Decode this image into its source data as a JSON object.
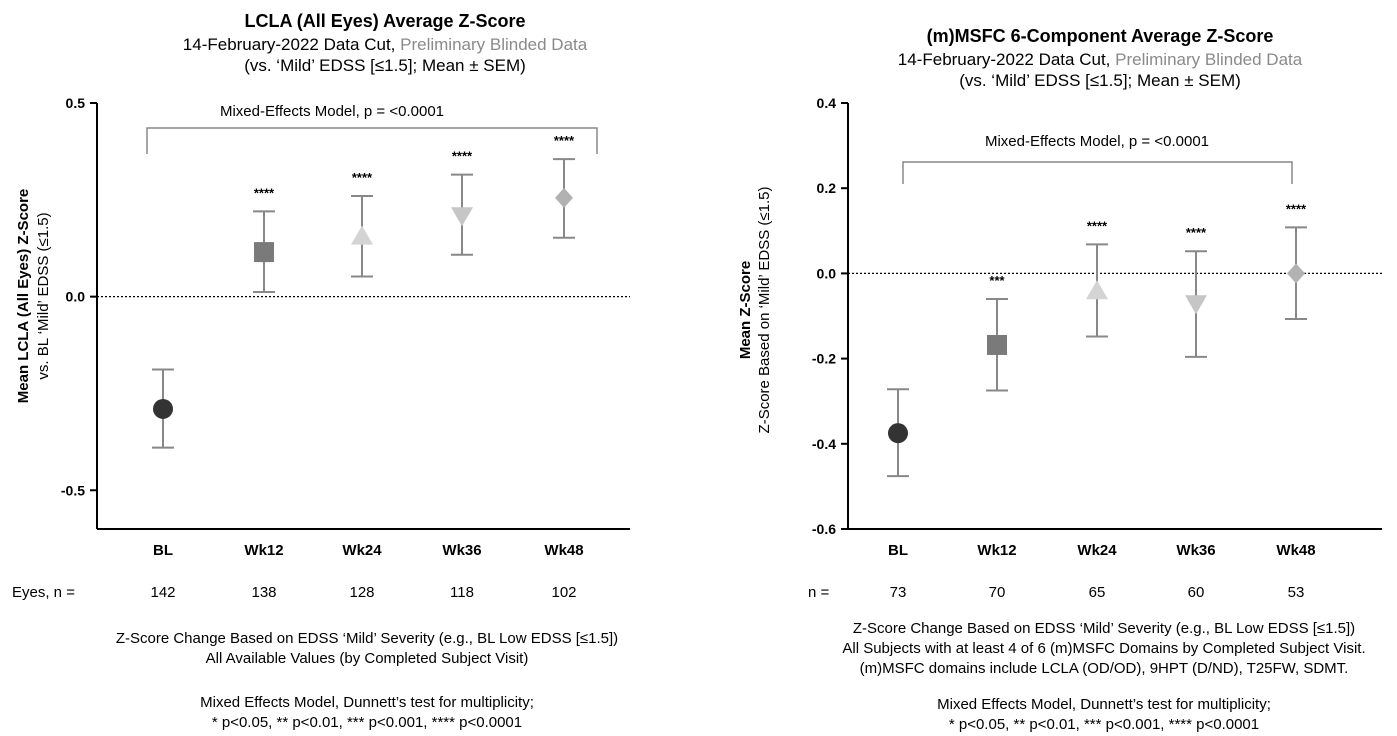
{
  "chart_data": [
    {
      "type": "scatter",
      "title": "LCLA (All Eyes) Average Z-Score",
      "subtitle_black": "14-February-2022 Data Cut,",
      "subtitle_gray": "Preliminary Blinded Data",
      "subtitle2": "(vs. ‘Mild’ EDSS [≤1.5]; Mean ± SEM)",
      "ylabel_bold": "Mean LCLA (All Eyes) Z-Score",
      "ylabel_sub": "vs. BL ‘Mild’ EDSS (≤1.5)",
      "ylim": [
        -0.6,
        0.5
      ],
      "yticks": [
        0.5,
        0.0,
        -0.5
      ],
      "ytick_labels": [
        "0.5",
        "0.0",
        "-0.5"
      ],
      "reference_line": 0,
      "categories": [
        "BL",
        "Wk12",
        "Wk24",
        "Wk36",
        "Wk48"
      ],
      "means": [
        -0.29,
        0.115,
        0.155,
        0.21,
        0.255
      ],
      "sem_low": [
        -0.39,
        0.012,
        0.052,
        0.108,
        0.152
      ],
      "sem_high": [
        -0.188,
        0.22,
        0.26,
        0.315,
        0.355
      ],
      "markers": [
        "circle",
        "square",
        "triangle-up",
        "triangle-down",
        "diamond"
      ],
      "marker_colors": [
        "#333333",
        "#7a7a7a",
        "#d4d4d4",
        "#c6c6c6",
        "#b2b2b2"
      ],
      "significance": [
        "",
        "****",
        "****",
        "****",
        "****"
      ],
      "bracket_label": "Mixed-Effects Model, p =  <0.0001",
      "n_label": "Eyes, n =",
      "n_values": [
        "142",
        "138",
        "128",
        "118",
        "102"
      ],
      "footnote1": "Z-Score Change Based on EDSS ‘Mild’ Severity (e.g., BL Low EDSS [≤1.5])",
      "footnote2": "All Available Values (by Completed Subject Visit)",
      "footnote3": "Mixed Effects Model, Dunnett’s test for multiplicity;",
      "footnote4": "* p<0.05, ** p<0.01, *** p<0.001, **** p<0.0001"
    },
    {
      "type": "scatter",
      "title": "(m)MSFC 6-Component Average Z-Score",
      "subtitle_black": "14-February-2022 Data Cut,",
      "subtitle_gray": "Preliminary Blinded Data",
      "subtitle2": "(vs. ‘Mild’ EDSS [≤1.5]; Mean ± SEM)",
      "ylabel_bold": "Mean Z-Score",
      "ylabel_sub": "Z-Score Based on ‘Mild’ EDSS (≤1.5)",
      "ylim": [
        -0.6,
        0.4
      ],
      "yticks": [
        0.4,
        0.2,
        0.0,
        -0.2,
        -0.4,
        -0.6
      ],
      "ytick_labels": [
        "0.4",
        "0.2",
        "0.0",
        "-0.2",
        "-0.4",
        "-0.6"
      ],
      "reference_line": 0,
      "categories": [
        "BL",
        "Wk12",
        "Wk24",
        "Wk36",
        "Wk48"
      ],
      "means": [
        -0.375,
        -0.168,
        -0.042,
        -0.07,
        0.0
      ],
      "sem_low": [
        -0.476,
        -0.275,
        -0.148,
        -0.196,
        -0.107
      ],
      "sem_high": [
        -0.272,
        -0.06,
        0.068,
        0.052,
        0.108
      ],
      "markers": [
        "circle",
        "square",
        "triangle-up",
        "triangle-down",
        "diamond"
      ],
      "marker_colors": [
        "#333333",
        "#7a7a7a",
        "#d4d4d4",
        "#c6c6c6",
        "#b2b2b2"
      ],
      "significance": [
        "",
        "***",
        "****",
        "****",
        "****"
      ],
      "bracket_label": "Mixed-Effects Model, p = <0.0001",
      "n_label": "n =",
      "n_values": [
        "73",
        "70",
        "65",
        "60",
        "53"
      ],
      "footnote1": "Z-Score Change Based on EDSS ‘Mild’ Severity (e.g., BL Low EDSS [≤1.5])",
      "footnote2": "All Subjects with at least 4 of 6 (m)MSFC Domains by Completed Subject Visit.",
      "footnote2b": "(m)MSFC domains include LCLA (OD/OD), 9HPT (D/ND), T25FW, SDMT.",
      "footnote3": "Mixed Effects Model, Dunnett’s test for multiplicity;",
      "footnote4": "* p<0.05, ** p<0.01, *** p<0.001, **** p<0.0001"
    }
  ]
}
